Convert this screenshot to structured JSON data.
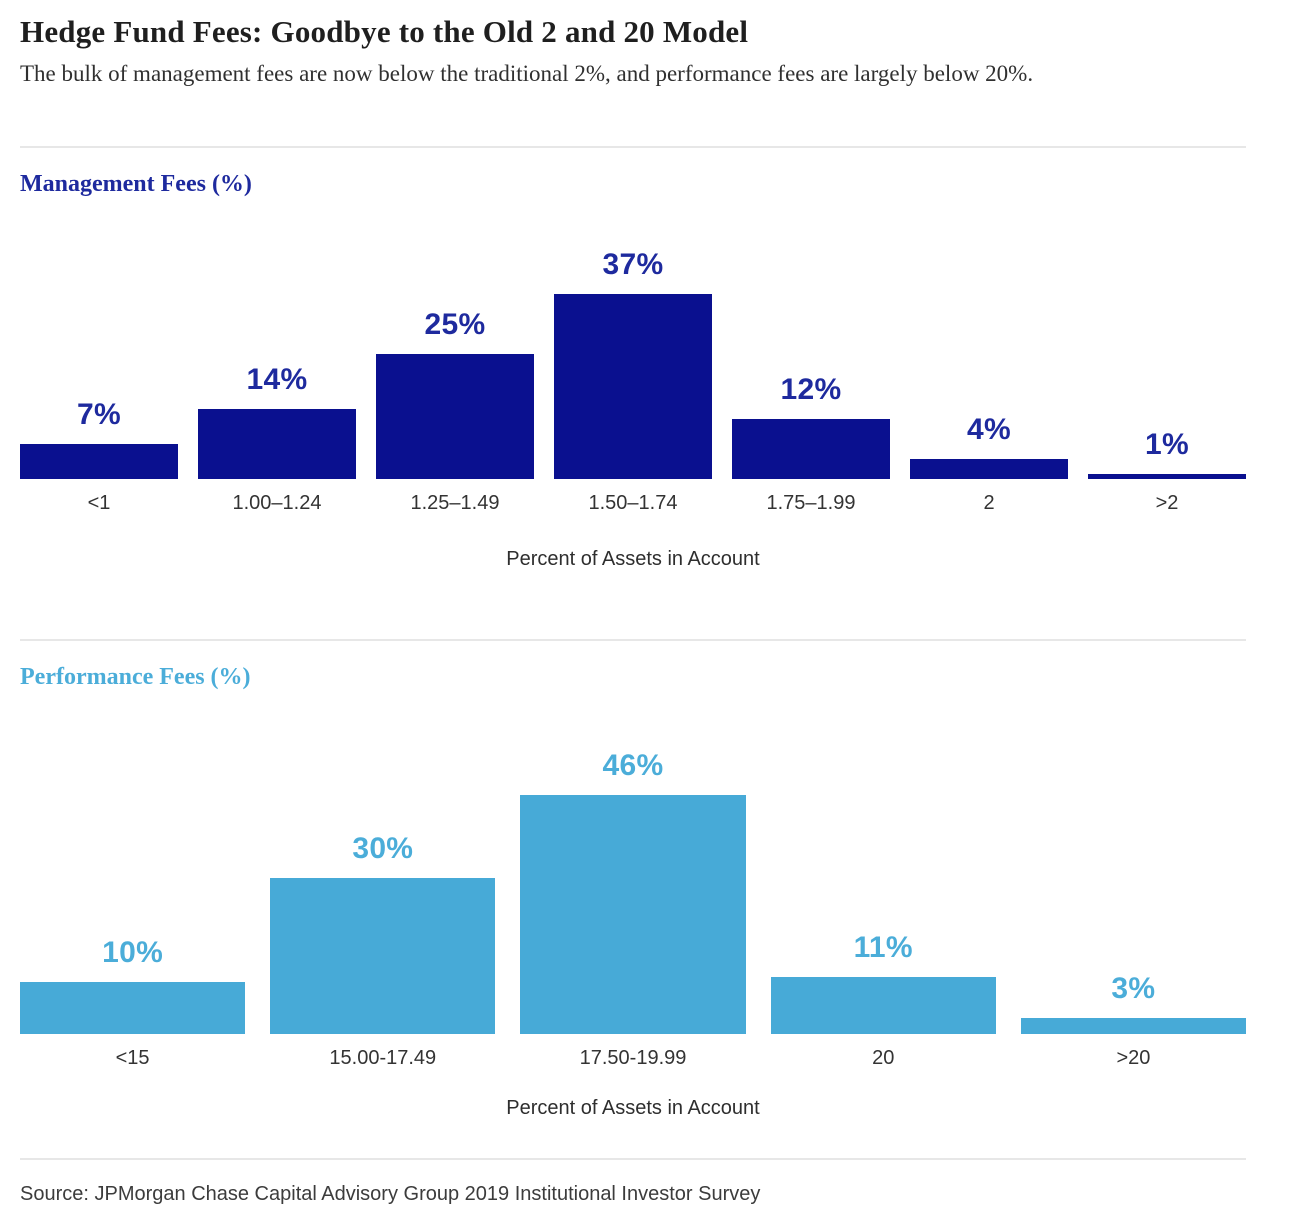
{
  "page": {
    "title": "Hedge Fund Fees: Goodbye to the Old 2 and 20 Model",
    "subtitle": "The bulk of management fees are now below the traditional 2%, and performance fees are largely below 20%.",
    "source": "Source: JPMorgan Chase Capital Advisory Group 2019 Institutional Investor Survey"
  },
  "colors": {
    "management_bar": "#0a108f",
    "management_text": "#1e2a9e",
    "performance_bar": "#47aad7",
    "performance_text": "#4badd9",
    "tick_text": "#333333",
    "divider": "#e7e7e7"
  },
  "chart_data": [
    {
      "type": "bar",
      "title": "Management Fees (%)",
      "categories": [
        "<1",
        "1.00–1.24",
        "1.25–1.49",
        "1.50–1.74",
        "1.75–1.99",
        "2",
        ">2"
      ],
      "values": [
        7,
        14,
        25,
        37,
        12,
        4,
        1
      ],
      "value_labels": [
        "7%",
        "14%",
        "25%",
        "37%",
        "12%",
        "4%",
        "1%"
      ],
      "xlabel": "Percent of Assets in Account",
      "ylabel": "",
      "ylim": [
        0,
        40
      ],
      "grid": false,
      "legend": "none",
      "bar_color": "#0a108f",
      "label_color": "#1e2a9e",
      "title_color": "#1e2a9e"
    },
    {
      "type": "bar",
      "title": "Performance Fees (%)",
      "categories": [
        "<15",
        "15.00-17.49",
        "17.50-19.99",
        "20",
        ">20"
      ],
      "values": [
        10,
        30,
        46,
        11,
        3
      ],
      "value_labels": [
        "10%",
        "30%",
        "46%",
        "11%",
        "3%"
      ],
      "xlabel": "Percent of Assets in Account",
      "ylabel": "",
      "ylim": [
        0,
        50
      ],
      "grid": false,
      "legend": "none",
      "bar_color": "#47aad7",
      "label_color": "#4badd9",
      "title_color": "#4badd9"
    }
  ]
}
